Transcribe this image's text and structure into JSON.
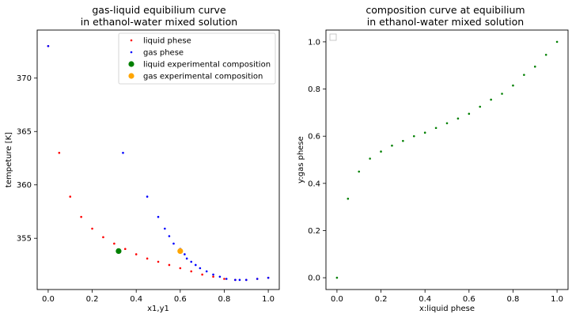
{
  "chart_data": [
    {
      "type": "scatter",
      "title_lines": [
        "gas-liquid equibilium curve",
        "in ethanol-water mixed solution"
      ],
      "xlabel": "x1,y1",
      "ylabel": "tempeture [K]",
      "xlim": [
        -0.05,
        1.05
      ],
      "ylim": [
        350.2,
        374.5
      ],
      "xticks": [
        0.0,
        0.2,
        0.4,
        0.6,
        0.8,
        1.0
      ],
      "xtick_labels": [
        "0.0",
        "0.2",
        "0.4",
        "0.6",
        "0.8",
        "1.0"
      ],
      "yticks": [
        355,
        360,
        365,
        370
      ],
      "ytick_labels": [
        "355",
        "360",
        "365",
        "370"
      ],
      "legend_position": "top-right",
      "series": [
        {
          "name": "liquid phese",
          "color": "#ff0000",
          "marker": "dot",
          "x": [
            0.0,
            0.05,
            0.1,
            0.15,
            0.2,
            0.25,
            0.3,
            0.35,
            0.4,
            0.45,
            0.5,
            0.55,
            0.6,
            0.65,
            0.7,
            0.75,
            0.8,
            0.85,
            0.9,
            0.95,
            1.0
          ],
          "y": [
            373.0,
            363.0,
            358.9,
            357.0,
            355.9,
            355.1,
            354.5,
            354.0,
            353.5,
            353.1,
            352.8,
            352.5,
            352.2,
            351.9,
            351.6,
            351.4,
            351.2,
            351.1,
            351.1,
            351.2,
            351.3
          ]
        },
        {
          "name": "gas phese",
          "color": "#0000ff",
          "marker": "dot",
          "x": [
            0.0,
            0.34,
            0.45,
            0.5,
            0.53,
            0.55,
            0.57,
            0.6,
            0.62,
            0.63,
            0.65,
            0.67,
            0.69,
            0.72,
            0.75,
            0.78,
            0.81,
            0.85,
            0.87,
            0.9,
            0.95,
            1.0
          ],
          "y": [
            373.0,
            363.0,
            358.9,
            357.0,
            355.9,
            355.2,
            354.5,
            354.0,
            353.5,
            353.1,
            352.8,
            352.5,
            352.2,
            351.9,
            351.6,
            351.4,
            351.2,
            351.1,
            351.1,
            351.1,
            351.2,
            351.3
          ]
        },
        {
          "name": "liquid experimental composition",
          "color": "#008000",
          "marker": "large-dot",
          "x": [
            0.32
          ],
          "y": [
            353.8
          ]
        },
        {
          "name": "gas experimental composition",
          "color": "#ffa500",
          "marker": "large-dot",
          "x": [
            0.6
          ],
          "y": [
            353.8
          ]
        }
      ]
    },
    {
      "type": "scatter",
      "title_lines": [
        "composition curve at equibilium",
        "in ethanol-water mixed solution"
      ],
      "xlabel": "x:liquid phese",
      "ylabel": "y:gas phese",
      "xlim": [
        -0.05,
        1.05
      ],
      "ylim": [
        -0.05,
        1.05
      ],
      "xticks": [
        0.0,
        0.2,
        0.4,
        0.6,
        0.8,
        1.0
      ],
      "xtick_labels": [
        "0.0",
        "0.2",
        "0.4",
        "0.6",
        "0.8",
        "1.0"
      ],
      "yticks": [
        0.0,
        0.2,
        0.4,
        0.6,
        0.8,
        1.0
      ],
      "ytick_labels": [
        "0.0",
        "0.2",
        "0.4",
        "0.6",
        "0.8",
        "1.0"
      ],
      "legend_position": "top-left",
      "series": [
        {
          "color": "#008000",
          "marker": "dot",
          "x": [
            0.0,
            0.05,
            0.1,
            0.15,
            0.2,
            0.25,
            0.3,
            0.35,
            0.4,
            0.45,
            0.5,
            0.55,
            0.6,
            0.65,
            0.7,
            0.75,
            0.8,
            0.85,
            0.9,
            0.95,
            1.0
          ],
          "y": [
            0.0,
            0.335,
            0.45,
            0.505,
            0.535,
            0.56,
            0.58,
            0.6,
            0.615,
            0.635,
            0.655,
            0.675,
            0.695,
            0.725,
            0.755,
            0.78,
            0.815,
            0.86,
            0.895,
            0.945,
            1.0
          ]
        }
      ]
    }
  ]
}
